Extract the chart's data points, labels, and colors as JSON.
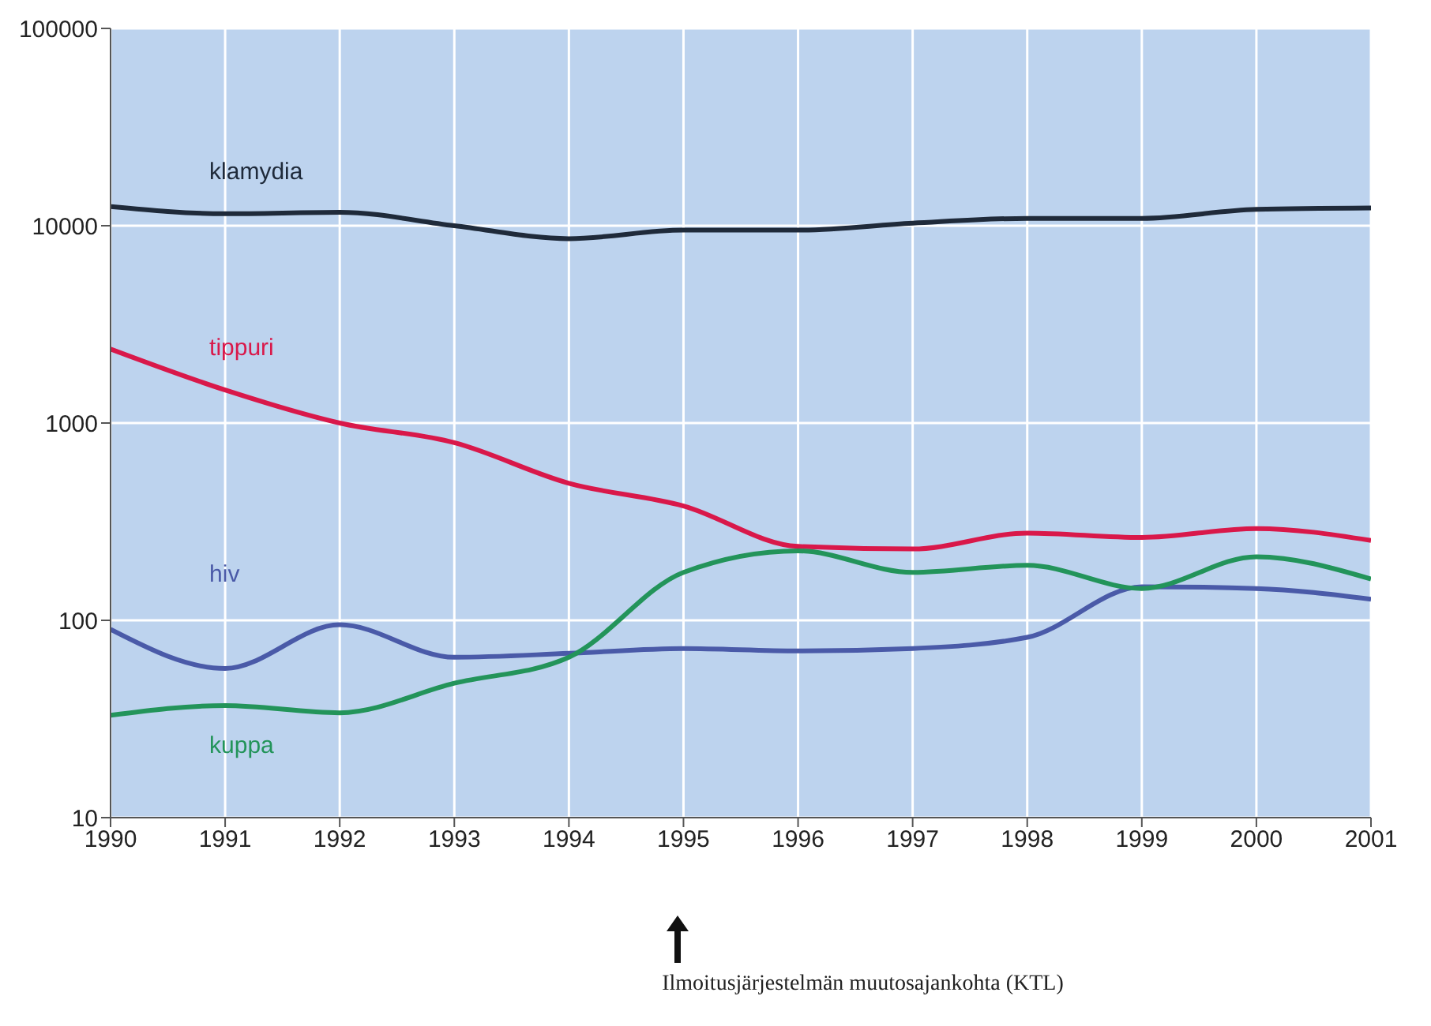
{
  "chart_data": {
    "type": "line",
    "x": [
      1990,
      1991,
      1992,
      1993,
      1994,
      1995,
      1996,
      1997,
      1998,
      1999,
      2000,
      2001
    ],
    "series": [
      {
        "name": "klamydia",
        "color": "#1f2a3a",
        "values": [
          12500,
          11500,
          11700,
          10000,
          8600,
          9500,
          9500,
          10300,
          10900,
          10900,
          12100,
          12300
        ]
      },
      {
        "name": "tippuri",
        "color": "#d9184a",
        "values": [
          2370,
          1470,
          1000,
          795,
          495,
          380,
          237,
          230,
          277,
          263,
          292,
          254
        ]
      },
      {
        "name": "hiv",
        "color": "#4a5aa8",
        "values": [
          90,
          57,
          95,
          65,
          68,
          72,
          70,
          72,
          82,
          148,
          145,
          128
        ]
      },
      {
        "name": "kuppa",
        "color": "#23945a",
        "values": [
          33,
          37,
          34,
          48,
          65,
          175,
          225,
          175,
          190,
          145,
          210,
          162
        ]
      }
    ],
    "xlim": [
      1990,
      2001
    ],
    "xticks": [
      1990,
      1991,
      1992,
      1993,
      1994,
      1995,
      1996,
      1997,
      1998,
      1999,
      2000,
      2001
    ],
    "ylim": [
      10,
      100000
    ],
    "yticks": [
      10,
      100,
      1000,
      10000,
      100000
    ],
    "log": true,
    "grid": true,
    "marker": "none",
    "line_style": "solid",
    "annotations": [
      "Ilmoitusjärjestelmän muutosajankohta (KTL)"
    ]
  }
}
